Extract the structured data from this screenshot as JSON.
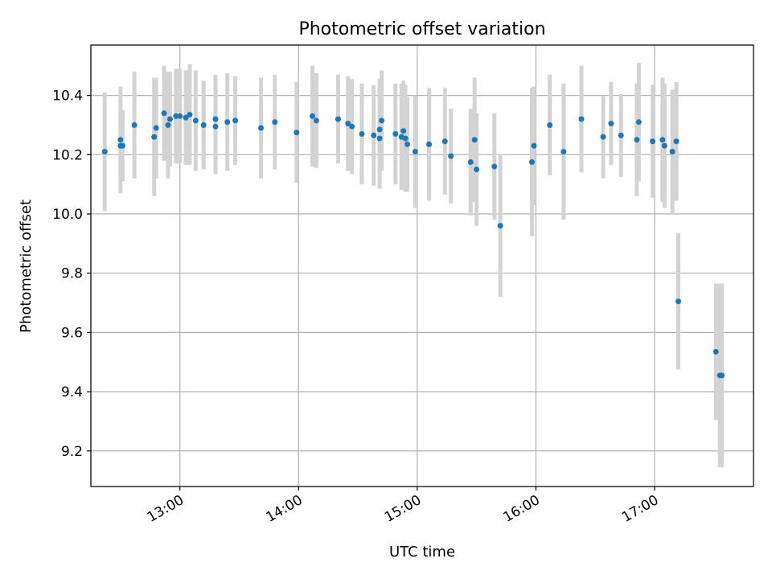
{
  "chart_data": {
    "type": "scatter",
    "title": "Photometric offset variation",
    "xlabel": "UTC time",
    "ylabel": "Photometric offset",
    "grid": true,
    "xlim": [
      "12:15",
      "17:50"
    ],
    "ylim": [
      9.08,
      10.57
    ],
    "x_ticks": [
      "13:00",
      "14:00",
      "15:00",
      "16:00",
      "17:00"
    ],
    "y_ticks": [
      9.2,
      9.4,
      9.6,
      9.8,
      10.0,
      10.2,
      10.4
    ],
    "colors": {
      "points": "#1f77b4",
      "error_bars": "#d3d3d3",
      "grid": "#b0b0b0"
    },
    "series": [
      {
        "x": [
          "12:22",
          "12:30",
          "12:30",
          "12:31",
          "12:37",
          "12:47",
          "12:48",
          "12:52",
          "12:54",
          "12:55",
          "12:58",
          "13:00",
          "13:03",
          "13:05",
          "13:08",
          "13:12",
          "13:18",
          "13:18",
          "13:24",
          "13:28",
          "13:41",
          "13:48",
          "13:59",
          "14:07",
          "14:09",
          "14:20",
          "14:25",
          "14:27",
          "14:32",
          "14:38",
          "14:41",
          "14:41",
          "14:42",
          "14:49",
          "14:52",
          "14:53",
          "14:54",
          "14:55",
          "14:59",
          "15:06",
          "15:06",
          "15:14",
          "15:17",
          "15:27",
          "15:29",
          "15:30",
          "15:39",
          "15:42",
          "15:58",
          "15:59",
          "16:07",
          "16:14",
          "16:23",
          "16:34",
          "16:38",
          "16:43",
          "16:51",
          "16:52",
          "16:59",
          "17:04",
          "17:05",
          "17:09",
          "17:11",
          "17:12",
          "17:31",
          "17:33",
          "17:34"
        ],
        "y": [
          10.21,
          10.25,
          10.23,
          10.23,
          10.3,
          10.26,
          10.29,
          10.34,
          10.3,
          10.32,
          10.33,
          10.33,
          10.325,
          10.335,
          10.315,
          10.3,
          10.295,
          10.32,
          10.31,
          10.315,
          10.29,
          10.31,
          10.275,
          10.33,
          10.315,
          10.32,
          10.305,
          10.295,
          10.27,
          10.265,
          10.285,
          10.255,
          10.315,
          10.27,
          10.26,
          10.28,
          10.255,
          10.235,
          10.21,
          10.235,
          10.235,
          10.245,
          10.195,
          10.175,
          10.25,
          10.15,
          10.16,
          9.96,
          10.175,
          10.23,
          10.3,
          10.21,
          10.32,
          10.26,
          10.305,
          10.265,
          10.25,
          10.31,
          10.245,
          10.25,
          10.23,
          10.21,
          10.245,
          9.705,
          9.535,
          9.455,
          9.455
        ],
        "yerr": [
          0.2,
          0.18,
          0.12,
          0.12,
          0.18,
          0.2,
          0.17,
          0.16,
          0.18,
          0.16,
          0.16,
          0.16,
          0.16,
          0.17,
          0.17,
          0.15,
          0.16,
          0.15,
          0.165,
          0.15,
          0.17,
          0.16,
          0.17,
          0.17,
          0.16,
          0.15,
          0.16,
          0.16,
          0.17,
          0.17,
          0.17,
          0.17,
          0.17,
          0.17,
          0.18,
          0.17,
          0.18,
          0.16,
          0.19,
          0.18,
          0.19,
          0.18,
          0.16,
          0.18,
          0.21,
          0.19,
          0.18,
          0.24,
          0.25,
          0.2,
          0.17,
          0.23,
          0.18,
          0.14,
          0.14,
          0.14,
          0.19,
          0.2,
          0.19,
          0.21,
          0.21,
          0.21,
          0.2,
          0.23,
          0.23,
          0.31,
          0.31
        ]
      }
    ]
  }
}
